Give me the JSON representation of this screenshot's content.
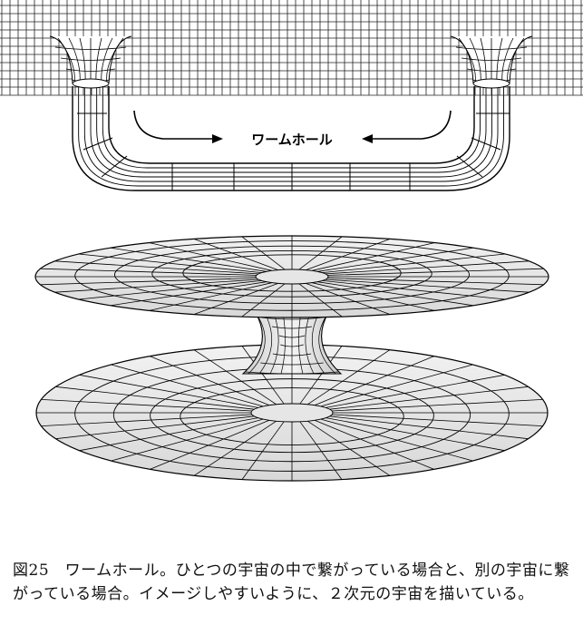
{
  "diagram": {
    "label": "ワームホール"
  },
  "caption": {
    "text": "図25　ワームホール。ひとつの宇宙の中で繋がっている場合と、別の宇宙に繋がっている場合。イメージしやすいように、２次元の宇宙を描いている。"
  }
}
